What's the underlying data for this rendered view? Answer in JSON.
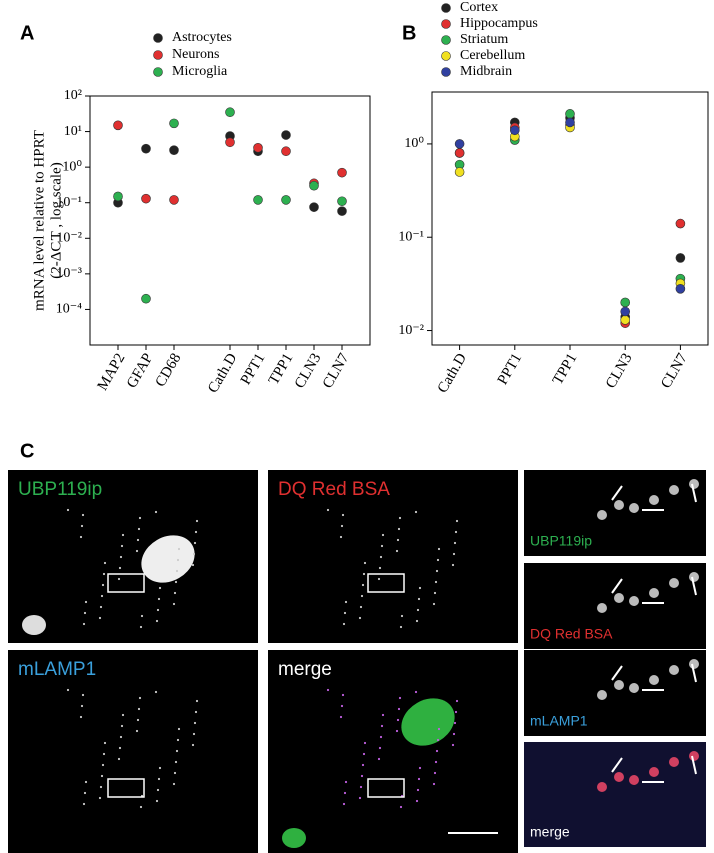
{
  "panel_labels": [
    "A",
    "B",
    "C"
  ],
  "chart_data": [
    {
      "type": "dot",
      "log_y": true,
      "y_label": [
        "mRNA level relative to HPRT",
        "(2-ΔC T ,   log scale)"
      ],
      "categories": [
        "MAP2",
        "GFAP",
        "CD68",
        null,
        "Cath.D",
        "PPT1",
        "TPP1",
        "CLN3",
        "CLN7"
      ],
      "ylim": [
        1e-05,
        100
      ],
      "yticks": [
        {
          "value": 0.0001,
          "label": "10⁻⁴"
        },
        {
          "value": 0.001,
          "label": "10⁻³"
        },
        {
          "value": 0.01,
          "label": "10⁻²"
        },
        {
          "value": 0.1,
          "label": "10⁻¹"
        },
        {
          "value": 1,
          "label": "10⁰"
        },
        {
          "value": 10,
          "label": "10¹"
        },
        {
          "value": 100,
          "label": "10²"
        }
      ],
      "series": [
        {
          "name": "Astrocytes",
          "color": "#222222",
          "values": [
            0.1,
            3.3,
            3,
            null,
            7.5,
            2.8,
            8,
            0.075,
            0.058
          ]
        },
        {
          "name": "Neurons",
          "color": "#e03030",
          "values": [
            15,
            0.13,
            0.12,
            null,
            5,
            3.5,
            2.8,
            0.35,
            0.7
          ]
        },
        {
          "name": "Microglia",
          "color": "#2db050",
          "values": [
            0.15,
            0.0002,
            17,
            null,
            35,
            0.12,
            0.12,
            0.3,
            0.11
          ]
        }
      ]
    },
    {
      "type": "dot",
      "log_y": true,
      "categories": [
        "Cath.D",
        "PPT1",
        "TPP1",
        "CLN3",
        "CLN7"
      ],
      "ylim": [
        0.007,
        3.6
      ],
      "yticks": [
        {
          "value": 0.01,
          "label": "10⁻²"
        },
        {
          "value": 0.1,
          "label": "10⁻¹"
        },
        {
          "value": 1,
          "label": "10⁰"
        }
      ],
      "series": [
        {
          "name": "Cortex",
          "color": "#222222",
          "values": [
            0.8,
            1.7,
            1.9,
            0.014,
            0.06
          ]
        },
        {
          "name": "Hippocampus",
          "color": "#e03030",
          "values": [
            0.8,
            1.5,
            1.6,
            0.012,
            0.14
          ]
        },
        {
          "name": "Striatum",
          "color": "#2db050",
          "values": [
            0.6,
            1.1,
            2.1,
            0.02,
            0.036
          ]
        },
        {
          "name": "Cerebellum",
          "color": "#f0e020",
          "values": [
            0.5,
            1.2,
            1.5,
            0.013,
            0.032
          ]
        },
        {
          "name": "Midbrain",
          "color": "#3040a0",
          "values": [
            1.0,
            1.4,
            1.7,
            0.016,
            0.028
          ]
        }
      ]
    }
  ],
  "panel_c": {
    "images": [
      {
        "label": "UBP119ip",
        "color": "#2db050"
      },
      {
        "label": "DQ Red BSA",
        "color": "#e03030"
      },
      {
        "label": "mLAMP1",
        "color": "#3aa0dc"
      },
      {
        "label": "merge",
        "color": "#ffffff"
      }
    ],
    "insets": [
      {
        "label": "UBP119ip",
        "color": "#2db050"
      },
      {
        "label": "DQ Red BSA",
        "color": "#e03030"
      },
      {
        "label": "mLAMP1",
        "color": "#3aa0dc"
      },
      {
        "label": "merge",
        "color": "#ffffff"
      }
    ]
  }
}
